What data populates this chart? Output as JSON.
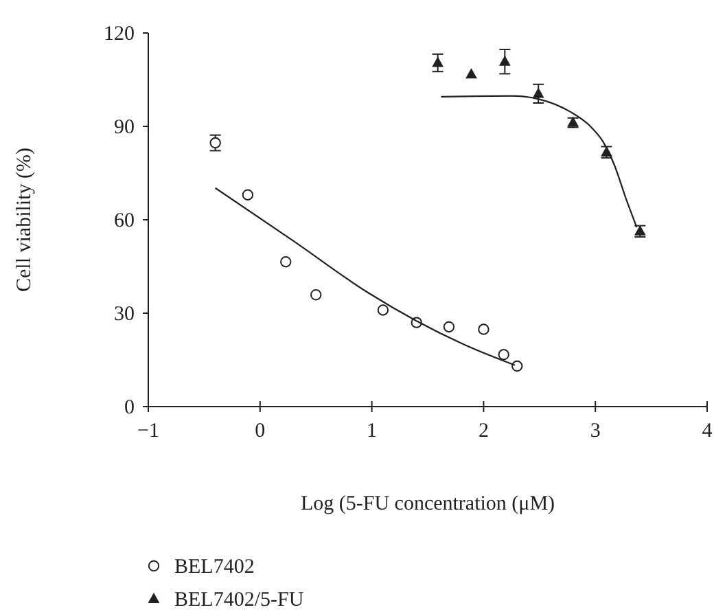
{
  "chart_data": {
    "type": "scatter",
    "xlabel": "Log (5-FU concentration (μM)",
    "ylabel": "Cell viability (%)",
    "xlim": [
      -1,
      4
    ],
    "xticks": [
      -1,
      0,
      1,
      2,
      3,
      4
    ],
    "ylim": [
      0,
      120
    ],
    "yticks": [
      0,
      30,
      60,
      90,
      120
    ],
    "grid": false,
    "legend": "bottom left",
    "series": [
      {
        "name": "BEL7402",
        "marker": "circle",
        "color": "#231f20",
        "x": [
          -0.4,
          -0.11,
          0.23,
          0.5,
          1.1,
          1.4,
          1.69,
          2.0,
          2.18,
          2.3
        ],
        "values": [
          84.7,
          68,
          46.5,
          35.9,
          31,
          27,
          25.6,
          24.8,
          16.7,
          13
        ],
        "errors": [
          2.5,
          null,
          null,
          null,
          null,
          null,
          null,
          null,
          null,
          null
        ]
      },
      {
        "name": "BEL7402/5-FU",
        "marker": "triangle",
        "color": "#231f20",
        "x": [
          1.59,
          1.89,
          2.19,
          2.49,
          2.8,
          3.1,
          3.4
        ],
        "values": [
          110.4,
          106.7,
          110.8,
          100.5,
          91.2,
          81.7,
          56.3
        ],
        "errors": [
          2.8,
          null,
          3.9,
          3,
          1.5,
          1.8,
          1.8
        ]
      },
      {
        "type": "line",
        "marker": "none",
        "line_style": "solid",
        "color": "#231f20",
        "x": [
          -0.4,
          0.29,
          0.97,
          1.82,
          2.28
        ],
        "values": [
          70.2,
          53.4,
          36.5,
          20,
          13.3
        ]
      },
      {
        "type": "line",
        "marker": "none",
        "line_style": "solid",
        "color": "#231f20",
        "x": [
          1.62,
          2.25,
          2.5,
          2.78,
          2.95,
          3.07,
          3.17,
          3.27,
          3.37
        ],
        "values": [
          99.5,
          99.8,
          98.7,
          94.6,
          90.2,
          85,
          77.6,
          67.2,
          57.6
        ]
      }
    ]
  }
}
